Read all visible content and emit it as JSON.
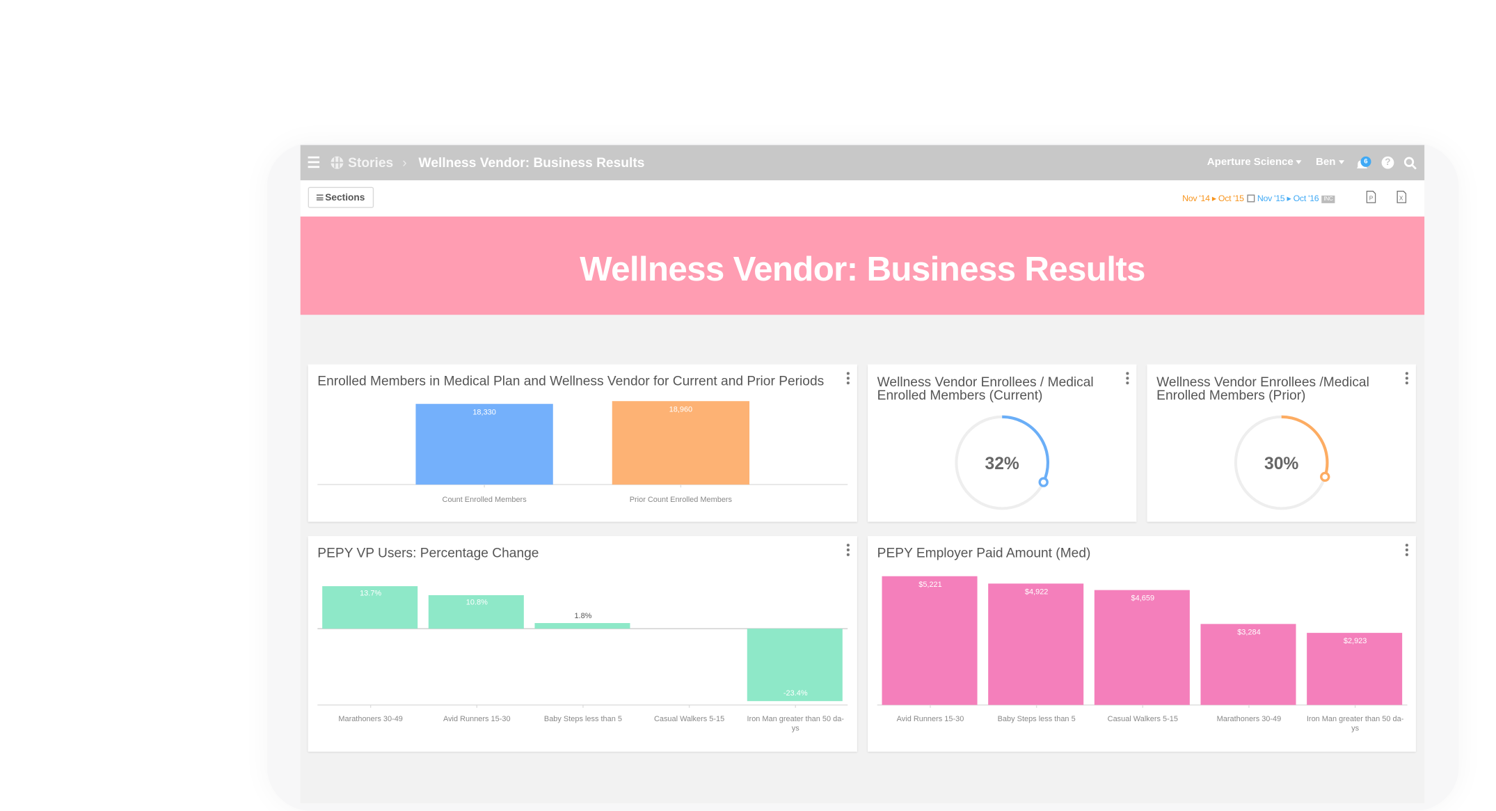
{
  "topbar": {
    "menu_icon": "hamburger-icon",
    "logo_icon": "stories-logo-icon",
    "breadcrumb_root": "Stories",
    "separator": "›",
    "page_title": "Wellness Vendor: Business Results",
    "org": "Aperture Science",
    "user": "Ben",
    "notification_count": "6",
    "help_label": "?"
  },
  "subbar": {
    "sections_label": "Sections",
    "current_period": "Nov '14 ▸ Oct '15",
    "prior_period": "Nov '15 ▸ Oct '16",
    "inc_badge": "INC"
  },
  "banner": {
    "title": "Wellness Vendor: Business Results",
    "color": "#ff9db2"
  },
  "cards": {
    "enrolled": {
      "title": "Enrolled Members in Medical Plan and Wellness Vendor for Current and Prior Periods"
    },
    "ratio_current": {
      "title_line1": "Wellness Vendor Enrollees / Medical",
      "title_line2": "Enrolled Members (Current)",
      "value_label": "32%",
      "value": 0.32,
      "color": "#6aaef7"
    },
    "ratio_prior": {
      "title_line1": "Wellness Vendor Enrollees /Medical",
      "title_line2": "Enrolled Members (Prior)",
      "value_label": "30%",
      "value": 0.3,
      "color": "#fdac62"
    },
    "pepy_change": {
      "title": "PEPY VP Users: Percentage Change"
    },
    "pepy_paid": {
      "title": "PEPY Employer Paid Amount (Med)"
    }
  },
  "chart_data": [
    {
      "type": "bar",
      "categories": [
        "Count Enrolled Members",
        "Prior Count Enrolled Members"
      ],
      "values": [
        18330,
        18960
      ],
      "data_labels": [
        "18,330",
        "18,960"
      ],
      "colors": [
        "#74b0fb",
        "#fdb274"
      ],
      "ylim": [
        0,
        19500
      ]
    },
    {
      "type": "bar",
      "categories": [
        "Marathoners 30-49",
        "Avid Runners 15-30",
        "Baby Steps less than 5",
        "Casual Walkers 5-15",
        "Iron Man greater than 50 da-ys"
      ],
      "values": [
        13.7,
        10.8,
        1.8,
        0,
        -23.4
      ],
      "data_labels": [
        "13.7%",
        "10.8%",
        "1.8%",
        "",
        "-23.4%"
      ],
      "color": "#8ee8c8",
      "ylim": [
        -25,
        14.5
      ]
    },
    {
      "type": "bar",
      "categories": [
        "Avid Runners 15-30",
        "Baby Steps less than 5",
        "Casual Walkers 5-15",
        "Marathoners 30-49",
        "Iron Man greater than 50 da-ys"
      ],
      "values": [
        5221,
        4922,
        4659,
        3284,
        2923
      ],
      "data_labels": [
        "$5,221",
        "$4,922",
        "$4,659",
        "$3,284",
        "$2,923"
      ],
      "color": "#f47fbb",
      "ylim": [
        0,
        5300
      ]
    }
  ]
}
